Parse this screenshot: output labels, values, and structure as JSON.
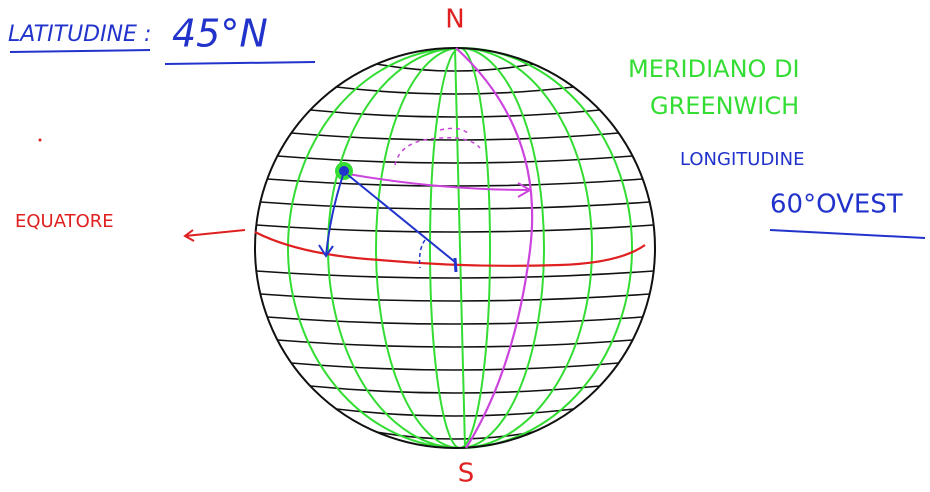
{
  "latitude": {
    "label": "LATITUDINE :",
    "value": "45°N"
  },
  "poles": {
    "north": "N",
    "south": "S"
  },
  "meridian": {
    "line1": "MERIDIANO DI",
    "line2": "GREENWICH"
  },
  "longitude": {
    "label": "LONGITUDINE",
    "value": "60°OVEST"
  },
  "equator": "EQUATORE"
}
